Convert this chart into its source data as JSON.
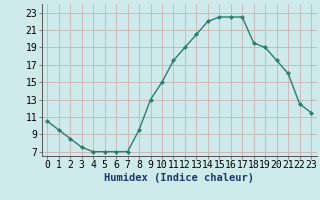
{
  "x": [
    0,
    1,
    2,
    3,
    4,
    5,
    6,
    7,
    8,
    9,
    10,
    11,
    12,
    13,
    14,
    15,
    16,
    17,
    18,
    19,
    20,
    21,
    22,
    23
  ],
  "y": [
    10.5,
    9.5,
    8.5,
    7.5,
    7.0,
    7.0,
    7.0,
    7.0,
    9.5,
    13.0,
    15.0,
    17.5,
    19.0,
    20.5,
    22.0,
    22.5,
    22.5,
    22.5,
    19.5,
    19.0,
    17.5,
    16.0,
    12.5,
    11.5
  ],
  "line_color": "#2e7d6e",
  "marker": "D",
  "markersize": 2,
  "linewidth": 1.0,
  "xlabel": "Humidex (Indice chaleur)",
  "ylabel_ticks": [
    7,
    9,
    11,
    13,
    15,
    17,
    19,
    21,
    23
  ],
  "xlim": [
    -0.5,
    23.5
  ],
  "ylim": [
    6.5,
    24.0
  ],
  "bg_color": "#ceeaea",
  "grid_color": "#c8a8a8",
  "xlabel_fontsize": 7.5,
  "tick_fontsize": 7,
  "xtick_labels": [
    "0",
    "1",
    "2",
    "3",
    "4",
    "5",
    "6",
    "7",
    "8",
    "9",
    "10",
    "11",
    "12",
    "13",
    "14",
    "15",
    "16",
    "17",
    "18",
    "19",
    "20",
    "21",
    "22",
    "23"
  ]
}
